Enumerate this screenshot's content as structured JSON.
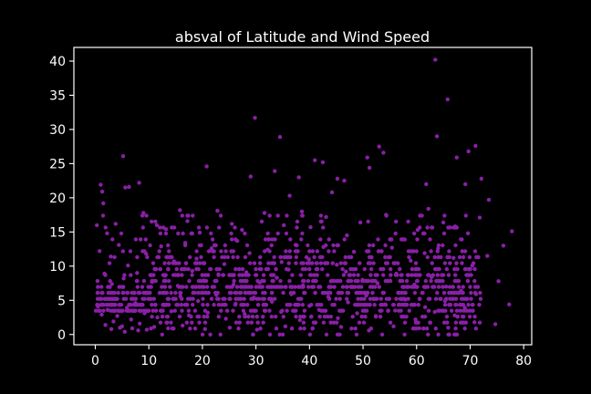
{
  "chart_data": {
    "type": "scatter",
    "title": "absval of Latitude and Wind Speed",
    "xlabel": "",
    "ylabel": "",
    "xlim": [
      -4,
      81.5
    ],
    "ylim": [
      -1.5,
      42
    ],
    "xticks": [
      0,
      10,
      20,
      30,
      40,
      50,
      60,
      70,
      80
    ],
    "yticks": [
      0,
      5,
      10,
      15,
      20,
      25,
      30,
      35,
      40
    ],
    "grid": false,
    "background": "#000000",
    "axis_color": "#ffffff",
    "point_color": "#8a1fa8",
    "approx_point_count": 1400,
    "points": [
      [
        63.5,
        40.2
      ],
      [
        65.8,
        34.4
      ],
      [
        29.8,
        31.7
      ],
      [
        34.5,
        28.9
      ],
      [
        63.8,
        29.0
      ],
      [
        53.0,
        27.5
      ],
      [
        71.0,
        27.6
      ],
      [
        69.7,
        26.8
      ],
      [
        5.2,
        26.1
      ],
      [
        53.8,
        26.6
      ],
      [
        41.0,
        25.5
      ],
      [
        42.5,
        25.2
      ],
      [
        50.8,
        25.9
      ],
      [
        67.5,
        25.9
      ],
      [
        20.8,
        24.6
      ],
      [
        51.2,
        24.4
      ],
      [
        33.5,
        23.9
      ],
      [
        1.0,
        21.9
      ],
      [
        6.3,
        21.6
      ],
      [
        8.2,
        22.2
      ],
      [
        29.0,
        23.1
      ],
      [
        38.0,
        23.0
      ],
      [
        45.2,
        22.8
      ],
      [
        46.5,
        22.5
      ],
      [
        61.8,
        22.0
      ],
      [
        72.1,
        22.8
      ],
      [
        1.3,
        20.9
      ],
      [
        5.6,
        21.5
      ],
      [
        69.1,
        22.0
      ],
      [
        73.5,
        19.7
      ],
      [
        1.5,
        19.2
      ],
      [
        36.3,
        20.3
      ],
      [
        44.2,
        20.8
      ],
      [
        62.2,
        18.4
      ],
      [
        77.8,
        15.1
      ],
      [
        76.2,
        13.0
      ],
      [
        75.3,
        7.8
      ],
      [
        77.3,
        4.4
      ],
      [
        74.7,
        1.5
      ],
      [
        0.3,
        16.0
      ],
      [
        2.2,
        14.8
      ],
      [
        3.8,
        16.2
      ],
      [
        9.0,
        17.8
      ],
      [
        11.5,
        16.0
      ],
      [
        13.2,
        15.4
      ],
      [
        15.8,
        18.2
      ],
      [
        17.2,
        16.6
      ],
      [
        19.5,
        14.9
      ],
      [
        22.8,
        18.1
      ],
      [
        25.5,
        16.2
      ],
      [
        27.4,
        15.3
      ],
      [
        31.6,
        17.8
      ],
      [
        35.2,
        16.0
      ],
      [
        38.6,
        18.0
      ],
      [
        40.2,
        15.7
      ],
      [
        43.1,
        17.2
      ],
      [
        47.0,
        14.5
      ],
      [
        49.5,
        16.4
      ],
      [
        54.3,
        17.5
      ],
      [
        57.8,
        13.9
      ],
      [
        60.2,
        15.3
      ],
      [
        65.0,
        16.4
      ],
      [
        67.2,
        15.8
      ],
      [
        69.6,
        14.8
      ],
      [
        71.8,
        17.1
      ],
      [
        0.8,
        12.2
      ],
      [
        2.9,
        11.4
      ],
      [
        4.4,
        13.1
      ],
      [
        6.1,
        10.1
      ],
      [
        9.5,
        11.8
      ],
      [
        12.3,
        12.9
      ],
      [
        14.7,
        10.7
      ],
      [
        16.8,
        13.4
      ],
      [
        18.9,
        11.1
      ],
      [
        21.7,
        12.6
      ],
      [
        24.1,
        10.3
      ],
      [
        26.5,
        13.7
      ],
      [
        28.8,
        11.9
      ],
      [
        32.2,
        12.4
      ],
      [
        34.8,
        10.6
      ],
      [
        37.4,
        13.1
      ],
      [
        39.9,
        11.0
      ],
      [
        42.6,
        12.8
      ],
      [
        45.1,
        10.2
      ],
      [
        48.3,
        12.1
      ],
      [
        51.6,
        11.3
      ],
      [
        55.4,
        12.7
      ],
      [
        58.9,
        10.8
      ],
      [
        61.5,
        11.9
      ],
      [
        64.0,
        12.6
      ],
      [
        66.9,
        11.2
      ],
      [
        70.4,
        10.1
      ],
      [
        73.2,
        11.5
      ],
      [
        1.7,
        8.9
      ],
      [
        3.1,
        7.4
      ],
      [
        5.3,
        8.2
      ],
      [
        7.8,
        9.0
      ],
      [
        10.6,
        7.7
      ],
      [
        13.0,
        8.6
      ],
      [
        15.4,
        7.1
      ],
      [
        18.1,
        9.3
      ],
      [
        20.3,
        7.9
      ],
      [
        23.0,
        8.8
      ],
      [
        25.8,
        7.3
      ],
      [
        28.2,
        9.1
      ],
      [
        30.7,
        7.6
      ],
      [
        33.9,
        8.3
      ],
      [
        36.1,
        9.5
      ],
      [
        38.8,
        7.2
      ],
      [
        41.4,
        8.7
      ],
      [
        44.0,
        7.8
      ],
      [
        46.8,
        9.2
      ],
      [
        49.9,
        8.0
      ],
      [
        52.7,
        7.5
      ],
      [
        56.2,
        8.9
      ],
      [
        59.6,
        7.3
      ],
      [
        62.8,
        8.4
      ],
      [
        65.5,
        7.0
      ],
      [
        68.3,
        6.4
      ],
      [
        71.1,
        5.9
      ],
      [
        0.5,
        4.1
      ],
      [
        1.2,
        2.9
      ],
      [
        2.3,
        3.6
      ],
      [
        3.4,
        1.9
      ],
      [
        4.1,
        2.7
      ],
      [
        5.0,
        1.2
      ],
      [
        5.9,
        3.9
      ],
      [
        6.7,
        2.2
      ],
      [
        7.5,
        4.6
      ],
      [
        8.3,
        1.6
      ],
      [
        9.2,
        3.1
      ],
      [
        10.4,
        5.2
      ],
      [
        11.6,
        2.5
      ],
      [
        12.9,
        4.3
      ],
      [
        14.2,
        3.4
      ],
      [
        15.9,
        5.6
      ],
      [
        17.5,
        2.8
      ],
      [
        19.2,
        4.9
      ],
      [
        21.0,
        3.2
      ],
      [
        22.6,
        5.8
      ],
      [
        24.4,
        2.3
      ],
      [
        26.2,
        4.5
      ],
      [
        27.9,
        3.0
      ],
      [
        29.6,
        5.4
      ],
      [
        31.3,
        2.6
      ],
      [
        33.0,
        4.8
      ],
      [
        34.7,
        3.3
      ],
      [
        36.6,
        5.9
      ],
      [
        38.2,
        2.1
      ],
      [
        40.0,
        4.2
      ],
      [
        41.8,
        3.6
      ],
      [
        43.5,
        5.5
      ],
      [
        45.3,
        2.4
      ],
      [
        47.2,
        4.7
      ],
      [
        48.9,
        3.1
      ],
      [
        50.6,
        5.7
      ],
      [
        52.4,
        2.7
      ],
      [
        54.1,
        4.4
      ],
      [
        56.0,
        3.5
      ],
      [
        57.9,
        5.1
      ],
      [
        59.8,
        2.2
      ],
      [
        61.6,
        4.0
      ],
      [
        63.4,
        3.3
      ],
      [
        65.3,
        4.9
      ],
      [
        67.1,
        2.8
      ],
      [
        69.0,
        3.9
      ],
      [
        70.8,
        1.8
      ],
      [
        1.9,
        1.4
      ],
      [
        3.0,
        0.8
      ],
      [
        4.6,
        1.0
      ],
      [
        5.5,
        0.4
      ],
      [
        6.9,
        0.9
      ],
      [
        8.0,
        0.6
      ],
      [
        9.6,
        0.7
      ],
      [
        11.0,
        1.1
      ],
      [
        13.6,
        0.9
      ],
      [
        16.3,
        1.3
      ],
      [
        20.5,
        0.8
      ],
      [
        25.1,
        1.0
      ],
      [
        30.2,
        0.7
      ],
      [
        35.5,
        1.2
      ],
      [
        40.6,
        0.9
      ],
      [
        45.9,
        1.1
      ],
      [
        51.1,
        0.6
      ],
      [
        55.7,
        1.2
      ],
      [
        60.5,
        0.9
      ],
      [
        65.9,
        1.0
      ]
    ]
  }
}
